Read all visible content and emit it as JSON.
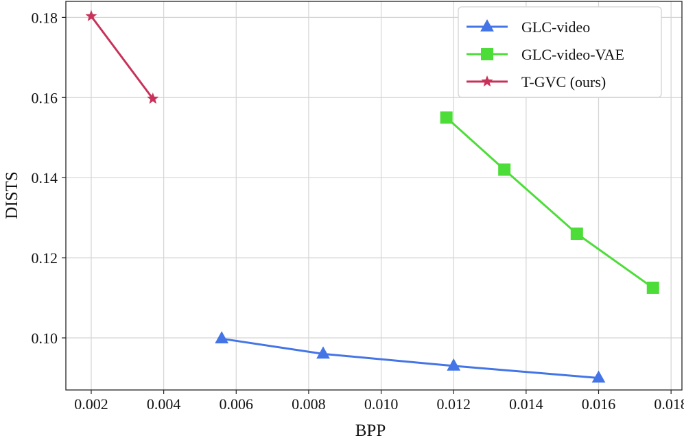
{
  "chart_data": {
    "type": "line",
    "xlabel": "BPP",
    "ylabel": "DISTS",
    "xlim": [
      0.0013,
      0.0183
    ],
    "ylim": [
      0.087,
      0.184
    ],
    "xticks": [
      "0.002",
      "0.004",
      "0.006",
      "0.008",
      "0.010",
      "0.012",
      "0.014",
      "0.016",
      "0.018"
    ],
    "xtick_values": [
      0.002,
      0.004,
      0.006,
      0.008,
      0.01,
      0.012,
      0.014,
      0.016,
      0.018
    ],
    "yticks": [
      "0.10",
      "0.12",
      "0.14",
      "0.16",
      "0.18"
    ],
    "ytick_values": [
      0.1,
      0.12,
      0.14,
      0.16,
      0.18
    ],
    "grid": true,
    "legend_position": "top-right",
    "series": [
      {
        "name": "GLC-video",
        "color": "#4475e6",
        "marker": "triangle",
        "x": [
          0.0056,
          0.0084,
          0.012,
          0.016
        ],
        "y": [
          0.0998,
          0.096,
          0.093,
          0.09
        ]
      },
      {
        "name": "GLC-video-VAE",
        "color": "#4ddd39",
        "marker": "square",
        "x": [
          0.0118,
          0.0134,
          0.0154,
          0.0175
        ],
        "y": [
          0.155,
          0.142,
          0.126,
          0.1125
        ]
      },
      {
        "name": "T-GVC (ours)",
        "color": "#c8325a",
        "marker": "star",
        "x": [
          0.002,
          0.0037
        ],
        "y": [
          0.1803,
          0.1597
        ]
      }
    ]
  }
}
